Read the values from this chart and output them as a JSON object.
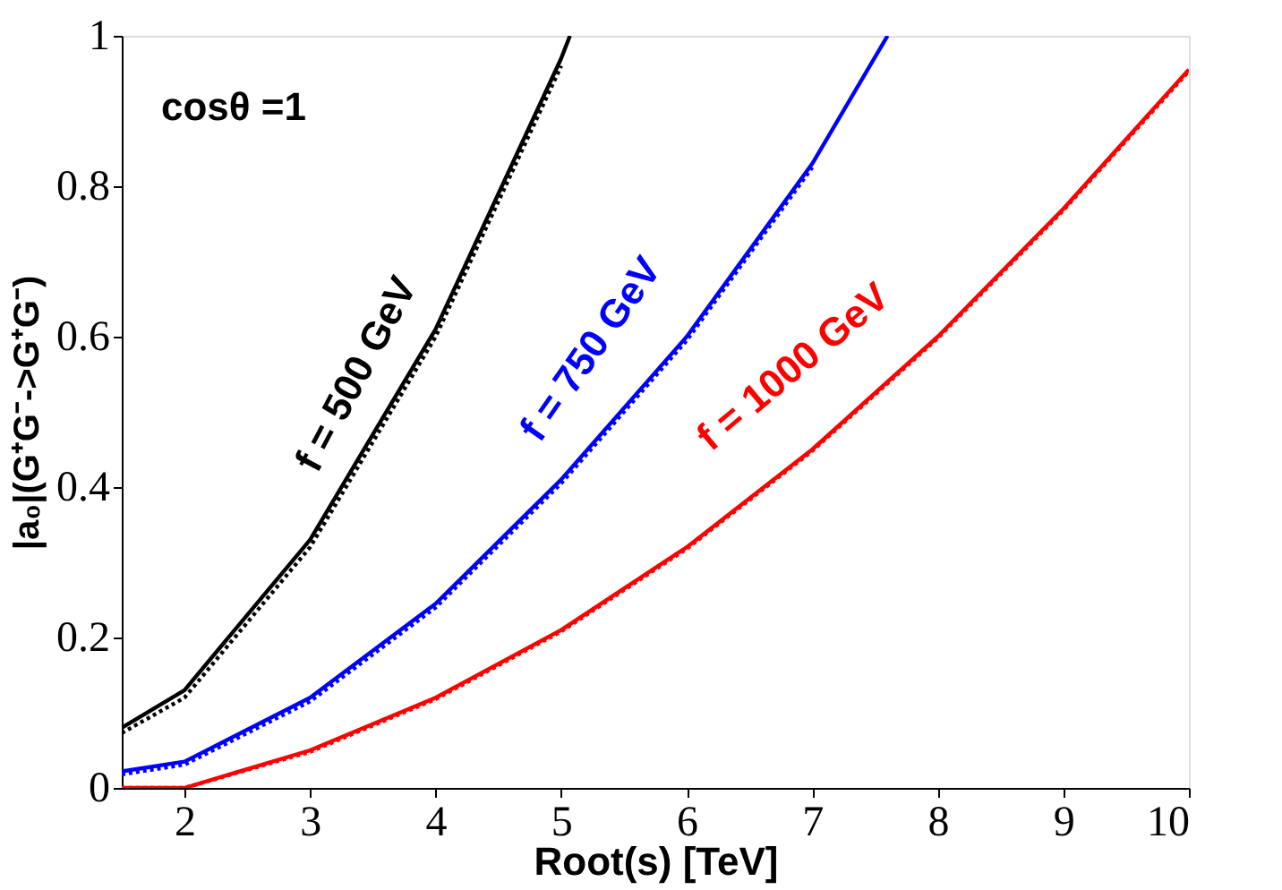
{
  "chart_data": {
    "type": "line",
    "xlabel": "Root(s) [TeV]",
    "ylabel": "|a₀|(G⁺G⁻->G⁺G⁻)",
    "xlim": [
      1.5,
      10
    ],
    "ylim": [
      0,
      1
    ],
    "xticks": [
      2,
      3,
      4,
      5,
      6,
      7,
      8,
      9,
      10
    ],
    "yticks": [
      0,
      0.2,
      0.4,
      0.6,
      0.8,
      1
    ],
    "grid": false,
    "series": [
      {
        "color": "#000000",
        "line_style": "solid",
        "x": [
          1.5,
          2,
          3,
          4,
          5,
          5.07
        ],
        "values": [
          0.08,
          0.13,
          0.33,
          0.61,
          0.97,
          1.0
        ]
      },
      {
        "color": "#000000",
        "line_style": "dotted",
        "x": [
          1.5,
          2,
          3,
          4,
          5
        ],
        "values": [
          0.073,
          0.12,
          0.32,
          0.6,
          0.96
        ]
      },
      {
        "color": "#0000ff",
        "line_style": "solid",
        "x": [
          1.5,
          2,
          3,
          4,
          5,
          6,
          7,
          7.6
        ],
        "values": [
          0.022,
          0.035,
          0.12,
          0.245,
          0.41,
          0.6,
          0.83,
          1.0
        ]
      },
      {
        "color": "#0000ff",
        "line_style": "dotted",
        "x": [
          1.5,
          2,
          3,
          4,
          5,
          6,
          7
        ],
        "values": [
          0.018,
          0.031,
          0.115,
          0.24,
          0.405,
          0.595,
          0.825
        ]
      },
      {
        "color": "#ff0000",
        "line_style": "solid",
        "x": [
          1.5,
          2,
          3,
          4,
          5,
          6,
          7,
          8,
          9,
          10
        ],
        "values": [
          0.0,
          0.0,
          0.05,
          0.12,
          0.21,
          0.32,
          0.45,
          0.6,
          0.77,
          0.955
        ]
      },
      {
        "color": "#ff0000",
        "line_style": "dotted",
        "x": [
          1.5,
          2,
          3,
          4,
          5,
          6,
          7,
          8,
          9,
          10
        ],
        "values": [
          0.0,
          0.0,
          0.048,
          0.118,
          0.208,
          0.318,
          0.448,
          0.598,
          0.768,
          0.953
        ]
      }
    ],
    "annotations": [
      "cosθ =1",
      "f = 500 GeV",
      "f = 750 GeV",
      "f = 1000 GeV"
    ]
  }
}
